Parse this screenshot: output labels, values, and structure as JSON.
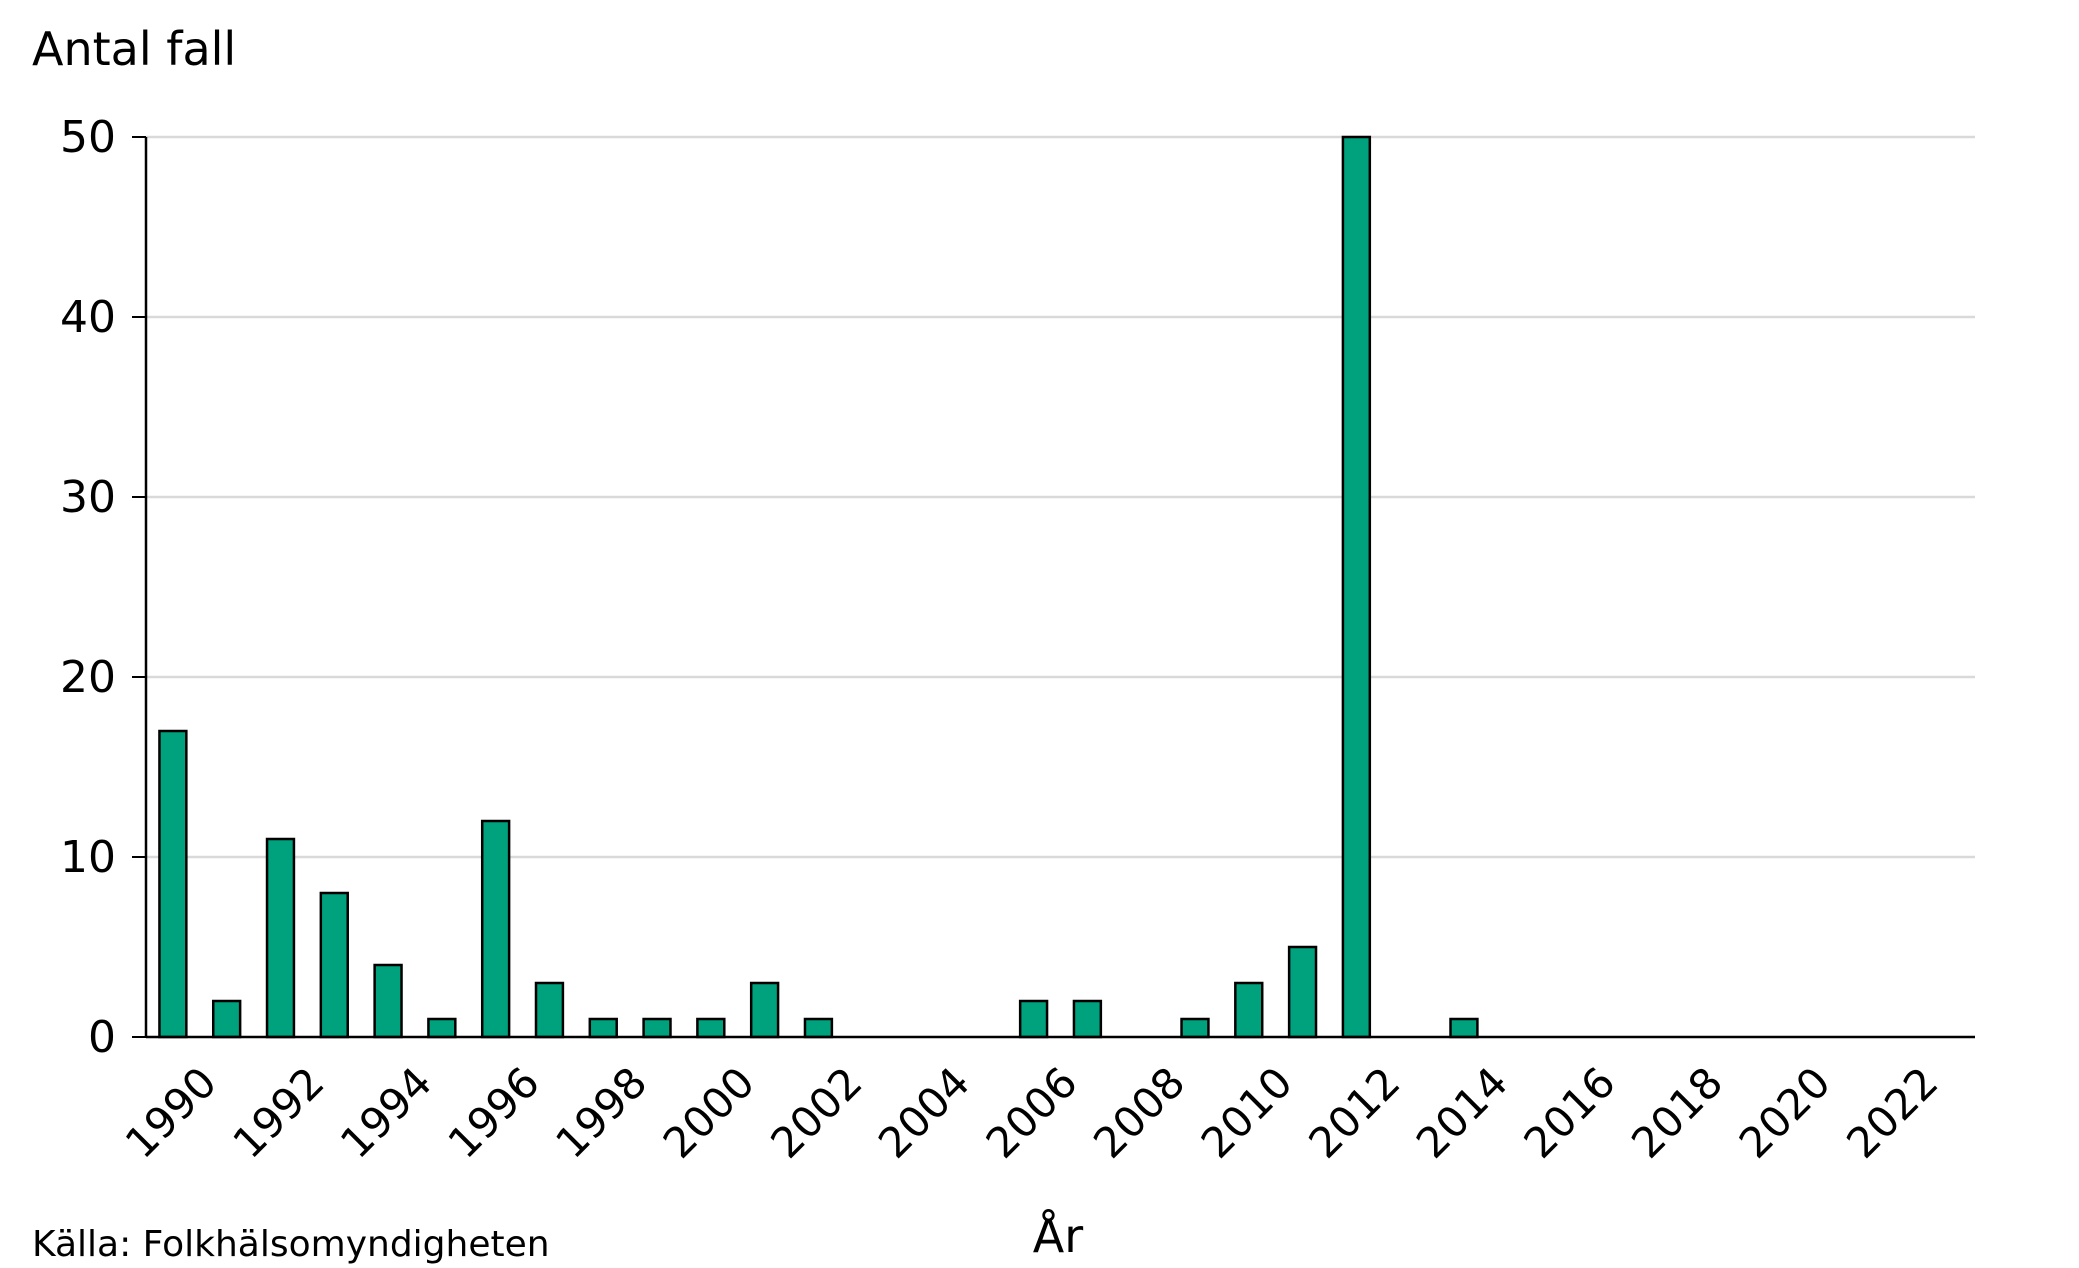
{
  "chart_data": {
    "type": "bar",
    "ylabel": "Antal fall",
    "xlabel": "År",
    "source": "Källa: Folkhälsomyndigheten",
    "ylim": [
      0,
      50
    ],
    "yticks": [
      0,
      10,
      20,
      30,
      40,
      50
    ],
    "grid": true,
    "bar_color": "#00a27e",
    "bar_edge_color": "#000000",
    "grid_color": "#d9d9d9",
    "categories": [
      1990,
      1991,
      1992,
      1993,
      1994,
      1995,
      1996,
      1997,
      1998,
      1999,
      2000,
      2001,
      2002,
      2003,
      2004,
      2005,
      2006,
      2007,
      2008,
      2009,
      2010,
      2011,
      2012,
      2013,
      2014,
      2015,
      2016,
      2017,
      2018,
      2019,
      2020,
      2021,
      2022,
      2023
    ],
    "tick_labels": [
      "1990",
      "1992",
      "1994",
      "1996",
      "1998",
      "2000",
      "2002",
      "2004",
      "2006",
      "2008",
      "2010",
      "2012",
      "2014",
      "2016",
      "2018",
      "2020",
      "2022"
    ],
    "values": [
      17,
      2,
      11,
      8,
      4,
      1,
      12,
      3,
      1,
      1,
      1,
      3,
      1,
      0,
      0,
      0,
      2,
      2,
      0,
      1,
      3,
      5,
      50,
      0,
      1,
      0,
      0,
      0,
      0,
      0,
      0,
      0,
      0,
      0
    ]
  }
}
